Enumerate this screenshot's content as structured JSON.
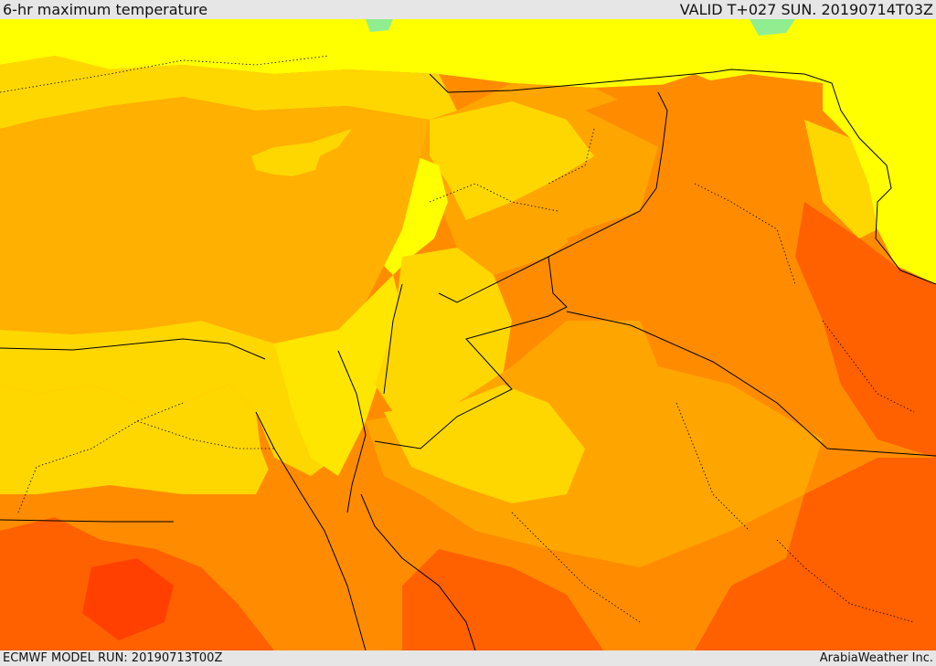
{
  "header": {
    "title": "6-hr maximum temperature",
    "valid": "VALID T+027 SUN. 20190714T03Z"
  },
  "footer": {
    "model_run": "ECMWF MODEL RUN: 20190713T00Z",
    "credit": "ArabiaWeather Inc."
  },
  "colors": {
    "yellow": "#ffff00",
    "light_yellow": "#ffe600",
    "gold": "#ffd700",
    "sea_orange": "#ffb000",
    "orange": "#ffa500",
    "dark_orange": "#ff8c00",
    "red_orange": "#ff6000",
    "red": "#ff4000",
    "green": "#90ee90",
    "border": "#000000"
  }
}
